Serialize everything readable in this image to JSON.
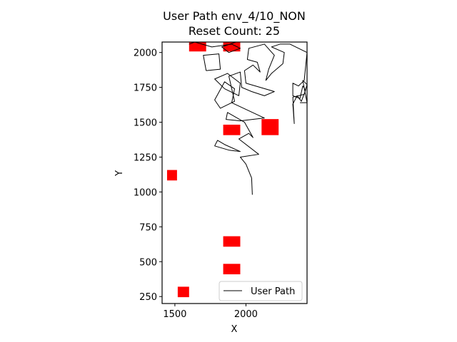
{
  "chart_data": {
    "type": "line",
    "title": "User Path env_4/10_NON",
    "subtitle": "Reset Count: 25",
    "xlabel": "X",
    "ylabel": "Y",
    "xlim": [
      1410,
      2430
    ],
    "ylim": [
      200,
      2075
    ],
    "xticks": [
      1500,
      2000
    ],
    "yticks": [
      250,
      500,
      750,
      1000,
      1250,
      1500,
      1750,
      2000
    ],
    "grid": false,
    "legend": {
      "position": "lower-right",
      "entries": [
        "User Path"
      ]
    },
    "colors": {
      "path": "#000000",
      "obstacle": "#ff0000"
    },
    "series": [
      {
        "name": "User Path",
        "points": [
          [
            2045,
            980
          ],
          [
            2040,
            1100
          ],
          [
            2000,
            1200
          ],
          [
            1960,
            1250
          ],
          [
            2090,
            1270
          ],
          [
            1950,
            1380
          ],
          [
            2020,
            1420
          ],
          [
            2050,
            1390
          ],
          [
            1990,
            1500
          ],
          [
            1870,
            1570
          ],
          [
            1860,
            1520
          ],
          [
            1960,
            1510
          ],
          [
            2130,
            1530
          ],
          [
            1900,
            1640
          ],
          [
            1920,
            1740
          ],
          [
            1850,
            1790
          ],
          [
            1780,
            1660
          ],
          [
            1820,
            1600
          ],
          [
            1920,
            1650
          ],
          [
            1880,
            1830
          ],
          [
            1960,
            1860
          ],
          [
            1970,
            1750
          ],
          [
            2040,
            1720
          ],
          [
            2130,
            1690
          ],
          [
            2200,
            1720
          ],
          [
            2000,
            1780
          ],
          [
            1990,
            1870
          ],
          [
            2050,
            1910
          ],
          [
            2100,
            1860
          ],
          [
            2080,
            1930
          ],
          [
            2010,
            1950
          ],
          [
            2020,
            2030
          ],
          [
            2130,
            2060
          ],
          [
            2200,
            1980
          ],
          [
            2160,
            1880
          ],
          [
            2140,
            1800
          ],
          [
            2180,
            1850
          ],
          [
            2260,
            1920
          ],
          [
            2270,
            2000
          ],
          [
            2180,
            2040
          ],
          [
            2240,
            2060
          ],
          [
            2310,
            2060
          ],
          [
            2430,
            2000
          ],
          [
            2410,
            1800
          ],
          [
            2370,
            1760
          ],
          [
            2330,
            1780
          ],
          [
            2330,
            1690
          ],
          [
            2380,
            1670
          ],
          [
            2400,
            1760
          ],
          [
            2420,
            1730
          ],
          [
            2390,
            1650
          ],
          [
            2360,
            1690
          ],
          [
            2330,
            1630
          ],
          [
            2340,
            1490
          ],
          [
            2330,
            1680
          ],
          [
            2410,
            1700
          ],
          [
            2430,
            1770
          ],
          [
            2400,
            1800
          ],
          [
            2430,
            1640
          ],
          [
            2380,
            1640
          ]
        ]
      },
      {
        "name": "",
        "points": [
          [
            1720,
            1870
          ],
          [
            1700,
            1980
          ],
          [
            1810,
            1990
          ],
          [
            1820,
            1880
          ],
          [
            1720,
            1870
          ]
        ]
      },
      {
        "name": "",
        "points": [
          [
            1600,
            2060
          ],
          [
            1640,
            2075
          ],
          [
            1760,
            2040
          ],
          [
            1900,
            2060
          ],
          [
            1960,
            2030
          ],
          [
            1880,
            2000
          ],
          [
            1830,
            2040
          ],
          [
            1930,
            2075
          ]
        ]
      },
      {
        "name": "",
        "points": [
          [
            1880,
            1300
          ],
          [
            1960,
            1290
          ],
          [
            1850,
            1340
          ],
          [
            1800,
            1370
          ],
          [
            1780,
            1330
          ],
          [
            1880,
            1300
          ]
        ]
      },
      {
        "name": "",
        "points": [
          [
            1850,
            1740
          ],
          [
            1780,
            1810
          ],
          [
            1870,
            1850
          ],
          [
            1960,
            1780
          ],
          [
            1950,
            1690
          ],
          [
            1850,
            1740
          ]
        ]
      }
    ],
    "obstacles": [
      {
        "x": 1480,
        "y": 1120,
        "w": 70,
        "h": 75
      },
      {
        "x": 1560,
        "y": 283,
        "w": 80,
        "h": 75
      },
      {
        "x": 1660,
        "y": 2045,
        "w": 120,
        "h": 75
      },
      {
        "x": 1900,
        "y": 2045,
        "w": 120,
        "h": 75
      },
      {
        "x": 1900,
        "y": 1445,
        "w": 120,
        "h": 75
      },
      {
        "x": 2170,
        "y": 1465,
        "w": 120,
        "h": 115
      },
      {
        "x": 1900,
        "y": 645,
        "w": 120,
        "h": 75
      },
      {
        "x": 1900,
        "y": 447,
        "w": 120,
        "h": 75
      }
    ]
  }
}
